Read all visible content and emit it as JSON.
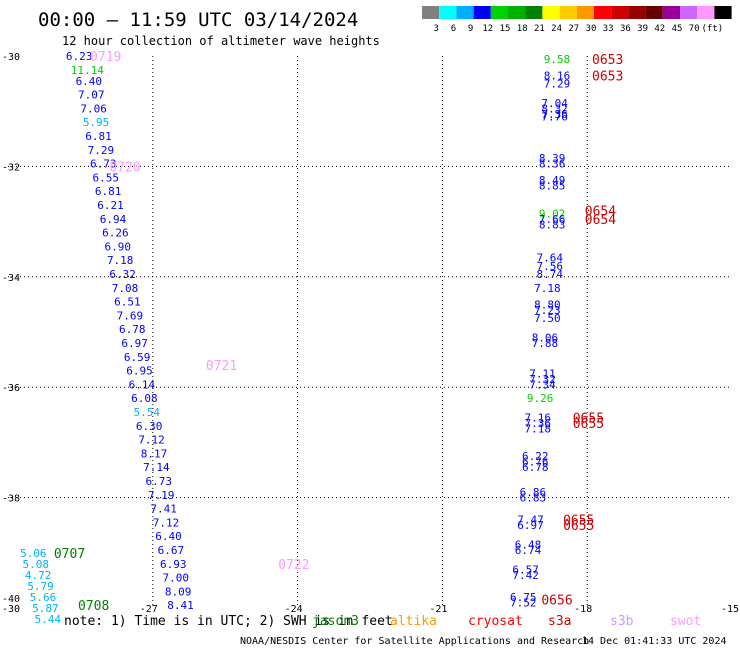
{
  "header": {
    "title": "00:00 – 11:59 UTC 03/14/2024",
    "subtitle": "12 hour collection of altimeter wave heights"
  },
  "color_scale": {
    "colors": [
      "#808080",
      "#00ffff",
      "#00b0ff",
      "#0000ff",
      "#00d000",
      "#00b000",
      "#008000",
      "#ffff00",
      "#ffcc00",
      "#ff9900",
      "#ff0000",
      "#cc0000",
      "#990000",
      "#660000",
      "#990099",
      "#cc66ff",
      "#ff99ff",
      "#000000"
    ],
    "labels": [
      "3",
      "6",
      "9",
      "12",
      "15",
      "18",
      "21",
      "24",
      "27",
      "30",
      "33",
      "36",
      "39",
      "42",
      "45",
      "70",
      "(ft)"
    ]
  },
  "footer": {
    "note": "note:  1) Time is in UTC; 2) SWH is in feet",
    "credit": "NOAA/NESDIS Center for Satellite Applications and Research",
    "generated": "14 Dec 01:41:33 UTC 2024",
    "satellites": [
      {
        "name": "jason3",
        "color": "#008000"
      },
      {
        "name": "altika",
        "color": "#ff9900"
      },
      {
        "name": "cryosat",
        "color": "#ff0000"
      },
      {
        "name": "s3a",
        "color": "#cc0000"
      },
      {
        "name": "s3b",
        "color": "#cc99ff"
      },
      {
        "name": "swot",
        "color": "#ff99ff"
      }
    ]
  },
  "chart_data": {
    "type": "scatter",
    "xlim": [
      -30,
      -15
    ],
    "ylim": [
      -40,
      -30
    ],
    "x_ticks": [
      "-30",
      "-27",
      "-24",
      "-21",
      "-18",
      "-15"
    ],
    "y_ticks": [
      "-30",
      "-32",
      "-34",
      "-36",
      "-38",
      "-40"
    ],
    "grid": true,
    "series": [
      {
        "name": "swot",
        "color": "#ff99ff",
        "label_times": [
          {
            "text": "0719",
            "lon": -28.3,
            "lat": -30.0
          },
          {
            "text": "0720",
            "lon": -27.9,
            "lat": -32.0
          },
          {
            "text": "0721",
            "lon": -25.9,
            "lat": -35.6
          },
          {
            "text": "0722",
            "lon": -24.4,
            "lat": -39.2
          }
        ],
        "points": [
          {
            "lon": -28.8,
            "lat": -30.0,
            "v": "6.23"
          },
          {
            "lon": -28.7,
            "lat": -30.25,
            "v": "11.14"
          },
          {
            "lon": -28.6,
            "lat": -30.45,
            "v": "6.40"
          },
          {
            "lon": -28.55,
            "lat": -30.7,
            "v": "7.07"
          },
          {
            "lon": -28.5,
            "lat": -30.95,
            "v": "7.06"
          },
          {
            "lon": -28.45,
            "lat": -31.2,
            "v": "5.95"
          },
          {
            "lon": -28.4,
            "lat": -31.45,
            "v": "6.81"
          },
          {
            "lon": -28.35,
            "lat": -31.7,
            "v": "7.29"
          },
          {
            "lon": -28.3,
            "lat": -31.95,
            "v": "6.73"
          },
          {
            "lon": -28.25,
            "lat": -32.2,
            "v": "6.55"
          },
          {
            "lon": -28.2,
            "lat": -32.45,
            "v": "6.81"
          },
          {
            "lon": -28.15,
            "lat": -32.7,
            "v": "6.21"
          },
          {
            "lon": -28.1,
            "lat": -32.95,
            "v": "6.94"
          },
          {
            "lon": -28.05,
            "lat": -33.2,
            "v": "6.26"
          },
          {
            "lon": -28.0,
            "lat": -33.45,
            "v": "6.90"
          },
          {
            "lon": -27.95,
            "lat": -33.7,
            "v": "7.18"
          },
          {
            "lon": -27.9,
            "lat": -33.95,
            "v": "6.32"
          },
          {
            "lon": -27.85,
            "lat": -34.2,
            "v": "7.08"
          },
          {
            "lon": -27.8,
            "lat": -34.45,
            "v": "6.51"
          },
          {
            "lon": -27.75,
            "lat": -34.7,
            "v": "7.69"
          },
          {
            "lon": -27.7,
            "lat": -34.95,
            "v": "6.78"
          },
          {
            "lon": -27.65,
            "lat": -35.2,
            "v": "6.97"
          },
          {
            "lon": -27.6,
            "lat": -35.45,
            "v": "6.59"
          },
          {
            "lon": -27.55,
            "lat": -35.7,
            "v": "6.95"
          },
          {
            "lon": -27.5,
            "lat": -35.95,
            "v": "6.14"
          },
          {
            "lon": -27.45,
            "lat": -36.2,
            "v": "6.08"
          },
          {
            "lon": -27.4,
            "lat": -36.45,
            "v": "5.54"
          },
          {
            "lon": -27.35,
            "lat": -36.7,
            "v": "6.30"
          },
          {
            "lon": -27.3,
            "lat": -36.95,
            "v": "7.12"
          },
          {
            "lon": -27.25,
            "lat": -37.2,
            "v": "8.17"
          },
          {
            "lon": -27.2,
            "lat": -37.45,
            "v": "7.14"
          },
          {
            "lon": -27.15,
            "lat": -37.7,
            "v": "6.73"
          },
          {
            "lon": -27.1,
            "lat": -37.95,
            "v": "7.19"
          },
          {
            "lon": -27.05,
            "lat": -38.2,
            "v": "7.41"
          },
          {
            "lon": -27.0,
            "lat": -38.45,
            "v": "7.12"
          },
          {
            "lon": -26.95,
            "lat": -38.7,
            "v": "6.40"
          },
          {
            "lon": -26.9,
            "lat": -38.95,
            "v": "6.67"
          },
          {
            "lon": -26.85,
            "lat": -39.2,
            "v": "6.93"
          },
          {
            "lon": -26.8,
            "lat": -39.45,
            "v": "7.00"
          },
          {
            "lon": -26.75,
            "lat": -39.7,
            "v": "8.09"
          },
          {
            "lon": -26.7,
            "lat": -39.95,
            "v": "8.41"
          }
        ]
      },
      {
        "name": "jason3",
        "color": "#008000",
        "label_times": [
          {
            "text": "0707",
            "lon": -29.05,
            "lat": -39.0
          },
          {
            "text": "0708",
            "lon": -28.55,
            "lat": -39.95
          }
        ],
        "points": [
          {
            "lon": -29.75,
            "lat": -39.0,
            "v": "5.06"
          },
          {
            "lon": -29.7,
            "lat": -39.2,
            "v": "5.08"
          },
          {
            "lon": -29.65,
            "lat": -39.4,
            "v": "4.72"
          },
          {
            "lon": -29.6,
            "lat": -39.6,
            "v": "5.79"
          },
          {
            "lon": -29.55,
            "lat": -39.8,
            "v": "5.66"
          },
          {
            "lon": -29.5,
            "lat": -40.0,
            "v": "5.87"
          },
          {
            "lon": -29.45,
            "lat": -40.2,
            "v": "5.44"
          }
        ]
      },
      {
        "name": "s3a",
        "color": "#cc0000",
        "label_times": [
          {
            "text": "0653",
            "lon": -17.9,
            "lat": -30.05
          },
          {
            "text": "0653",
            "lon": -17.9,
            "lat": -30.35
          },
          {
            "text": "0654",
            "lon": -18.05,
            "lat": -32.8
          },
          {
            "text": "0654",
            "lon": -18.05,
            "lat": -32.95
          },
          {
            "text": "0655",
            "lon": -18.3,
            "lat": -36.55
          },
          {
            "text": "0655",
            "lon": -18.3,
            "lat": -36.65
          },
          {
            "text": "0655",
            "lon": -18.5,
            "lat": -38.4
          },
          {
            "text": "0655",
            "lon": -18.5,
            "lat": -38.5
          },
          {
            "text": "0656",
            "lon": -18.95,
            "lat": -39.85
          }
        ],
        "points": [
          {
            "lon": -18.9,
            "lat": -30.05,
            "v": "9.58"
          },
          {
            "lon": -18.9,
            "lat": -30.35,
            "v": "8.16"
          },
          {
            "lon": -18.9,
            "lat": -30.5,
            "v": "7.29"
          },
          {
            "lon": -18.95,
            "lat": -30.85,
            "v": "7.04"
          },
          {
            "lon": -18.95,
            "lat": -30.95,
            "v": "8.32"
          },
          {
            "lon": -18.95,
            "lat": -31.05,
            "v": "7.36"
          },
          {
            "lon": -18.95,
            "lat": -31.1,
            "v": "7.76"
          },
          {
            "lon": -19.0,
            "lat": -31.85,
            "v": "8.39"
          },
          {
            "lon": -19.0,
            "lat": -31.95,
            "v": "8.36"
          },
          {
            "lon": -19.0,
            "lat": -32.25,
            "v": "8.49"
          },
          {
            "lon": -19.0,
            "lat": -32.35,
            "v": "8.85"
          },
          {
            "lon": -19.0,
            "lat": -32.85,
            "v": "9.02"
          },
          {
            "lon": -19.0,
            "lat": -32.95,
            "v": "7.66"
          },
          {
            "lon": -19.0,
            "lat": -33.05,
            "v": "8.83"
          },
          {
            "lon": -19.05,
            "lat": -33.65,
            "v": "7.64"
          },
          {
            "lon": -19.05,
            "lat": -33.8,
            "v": "7.56"
          },
          {
            "lon": -19.05,
            "lat": -33.95,
            "v": "8.74"
          },
          {
            "lon": -19.1,
            "lat": -34.2,
            "v": "7.18"
          },
          {
            "lon": -19.1,
            "lat": -34.5,
            "v": "8.80"
          },
          {
            "lon": -19.1,
            "lat": -34.6,
            "v": "7.23"
          },
          {
            "lon": -19.1,
            "lat": -34.75,
            "v": "7.50"
          },
          {
            "lon": -19.15,
            "lat": -35.1,
            "v": "8.06"
          },
          {
            "lon": -19.15,
            "lat": -35.2,
            "v": "7.88"
          },
          {
            "lon": -19.2,
            "lat": -35.75,
            "v": "7.11"
          },
          {
            "lon": -19.2,
            "lat": -35.85,
            "v": "7.32"
          },
          {
            "lon": -19.2,
            "lat": -35.95,
            "v": "7.34"
          },
          {
            "lon": -19.25,
            "lat": -36.2,
            "v": "9.26"
          },
          {
            "lon": -19.3,
            "lat": -36.55,
            "v": "7.16"
          },
          {
            "lon": -19.3,
            "lat": -36.65,
            "v": "7.36"
          },
          {
            "lon": -19.3,
            "lat": -36.75,
            "v": "7.18"
          },
          {
            "lon": -19.35,
            "lat": -37.25,
            "v": "6.22"
          },
          {
            "lon": -19.35,
            "lat": -37.35,
            "v": "6.76"
          },
          {
            "lon": -19.35,
            "lat": -37.45,
            "v": "6.78"
          },
          {
            "lon": -19.4,
            "lat": -37.9,
            "v": "6.86"
          },
          {
            "lon": -19.4,
            "lat": -38.0,
            "v": "6.83"
          },
          {
            "lon": -19.45,
            "lat": -38.4,
            "v": "7.47"
          },
          {
            "lon": -19.45,
            "lat": -38.5,
            "v": "6.97"
          },
          {
            "lon": -19.5,
            "lat": -38.85,
            "v": "6.48"
          },
          {
            "lon": -19.5,
            "lat": -38.95,
            "v": "6.74"
          },
          {
            "lon": -19.55,
            "lat": -39.3,
            "v": "6.57"
          },
          {
            "lon": -19.55,
            "lat": -39.4,
            "v": "7.42"
          },
          {
            "lon": -19.6,
            "lat": -39.8,
            "v": "6.75"
          },
          {
            "lon": -19.6,
            "lat": -39.9,
            "v": "7.52"
          }
        ]
      }
    ]
  }
}
